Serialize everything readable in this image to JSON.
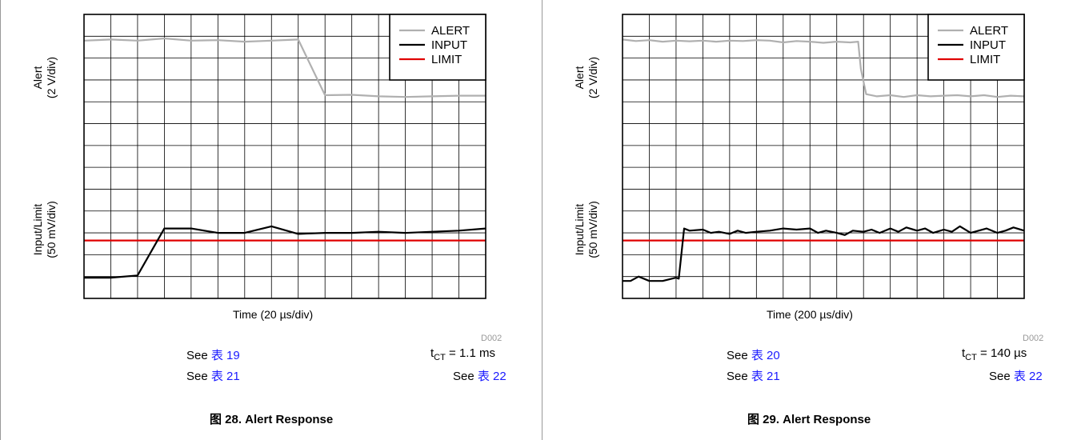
{
  "chart_data": [
    {
      "type": "line",
      "caption": "图 28. Alert Response",
      "xlabel": "Time (20 µs/div)",
      "ylabel_alert": "Alert",
      "ylabel_alert_unit": "(2 V/div)",
      "ylabel_input": "Input/Limit",
      "ylabel_input_unit": "(50 mV/div)",
      "x_divisions": 15,
      "y_divisions": 13,
      "code": "D002",
      "legend": [
        "ALERT",
        "INPUT",
        "LIMIT"
      ],
      "colors": {
        "ALERT": "#b0b0b0",
        "INPUT": "#000000",
        "LIMIT": "#e00000"
      },
      "series": [
        {
          "name": "ALERT",
          "x": [
            0,
            1,
            2,
            3,
            4,
            5,
            6,
            7,
            8,
            9,
            10,
            11,
            12,
            13,
            14,
            15
          ],
          "y": [
            11.8,
            11.85,
            11.8,
            11.9,
            11.8,
            11.82,
            11.75,
            11.8,
            11.85,
            9.3,
            9.32,
            9.25,
            9.22,
            9.25,
            9.28,
            9.28
          ]
        },
        {
          "name": "INPUT",
          "x": [
            0,
            1,
            2,
            3,
            4,
            5,
            6,
            7,
            8,
            9,
            10,
            11,
            12,
            13,
            14,
            15
          ],
          "y": [
            0.95,
            0.95,
            1.05,
            3.2,
            3.2,
            3.0,
            3.0,
            3.3,
            2.95,
            3.0,
            3.0,
            3.05,
            3.0,
            3.05,
            3.1,
            3.2
          ]
        },
        {
          "name": "LIMIT",
          "x": [
            0,
            15
          ],
          "y": [
            2.65,
            2.65
          ]
        }
      ],
      "notes": {
        "see_left_1": "See",
        "table_left_1": "表 19",
        "see_left_2": "See",
        "table_left_2": "表 21",
        "tct_prefix": "t",
        "tct_sub": "CT",
        "tct_value": "= 1.1 ms",
        "see_right": "See",
        "table_right": "表 22"
      }
    },
    {
      "type": "line",
      "caption": "图 29. Alert Response",
      "xlabel": "Time (200 µs/div)",
      "ylabel_alert": "Alert",
      "ylabel_alert_unit": "(2 V/div)",
      "ylabel_input": "Input/Limit",
      "ylabel_input_unit": "(50 mV/div)",
      "x_divisions": 15,
      "y_divisions": 13,
      "code": "D002",
      "legend": [
        "ALERT",
        "INPUT",
        "LIMIT"
      ],
      "colors": {
        "ALERT": "#b0b0b0",
        "INPUT": "#000000",
        "LIMIT": "#e00000"
      },
      "series": [
        {
          "name": "ALERT",
          "x": [
            0,
            0.5,
            1,
            1.5,
            2,
            2.5,
            3,
            3.5,
            4,
            4.5,
            5,
            5.5,
            6,
            6.5,
            7,
            7.5,
            8,
            8.5,
            8.8,
            8.9,
            9.1,
            9.5,
            10,
            10.5,
            11,
            11.5,
            12,
            12.5,
            13,
            13.5,
            14,
            14.5,
            15
          ],
          "y": [
            11.85,
            11.78,
            11.82,
            11.75,
            11.8,
            11.77,
            11.8,
            11.75,
            11.8,
            11.78,
            11.82,
            11.8,
            11.72,
            11.78,
            11.75,
            11.7,
            11.75,
            11.72,
            11.75,
            10.5,
            9.35,
            9.25,
            9.3,
            9.22,
            9.3,
            9.25,
            9.28,
            9.3,
            9.25,
            9.3,
            9.22,
            9.28,
            9.25
          ]
        },
        {
          "name": "INPUT",
          "x": [
            0,
            0.3,
            0.6,
            1,
            1.5,
            2,
            2.1,
            2.3,
            2.5,
            3,
            3.3,
            3.6,
            4,
            4.3,
            4.6,
            5,
            5.5,
            6,
            6.5,
            7,
            7.3,
            7.6,
            8,
            8.3,
            8.6,
            9,
            9.3,
            9.6,
            10,
            10.3,
            10.6,
            11,
            11.3,
            11.6,
            12,
            12.3,
            12.6,
            13,
            13.3,
            13.6,
            14,
            14.3,
            14.6,
            15
          ],
          "y": [
            0.8,
            0.8,
            1.0,
            0.8,
            0.8,
            0.95,
            0.9,
            3.2,
            3.1,
            3.15,
            3.0,
            3.05,
            2.95,
            3.1,
            3.0,
            3.05,
            3.1,
            3.2,
            3.15,
            3.2,
            3.0,
            3.1,
            3.0,
            2.9,
            3.1,
            3.05,
            3.15,
            3.0,
            3.2,
            3.05,
            3.25,
            3.1,
            3.2,
            3.0,
            3.15,
            3.05,
            3.3,
            3.0,
            3.1,
            3.2,
            3.0,
            3.1,
            3.25,
            3.1
          ]
        },
        {
          "name": "LIMIT",
          "x": [
            0,
            15
          ],
          "y": [
            2.65,
            2.65
          ]
        }
      ],
      "notes": {
        "see_left_1": "See",
        "table_left_1": "表 20",
        "see_left_2": "See",
        "table_left_2": "表 21",
        "tct_prefix": "t",
        "tct_sub": "CT",
        "tct_value": "= 140 µs",
        "see_right": "See",
        "table_right": "表 22"
      }
    }
  ]
}
